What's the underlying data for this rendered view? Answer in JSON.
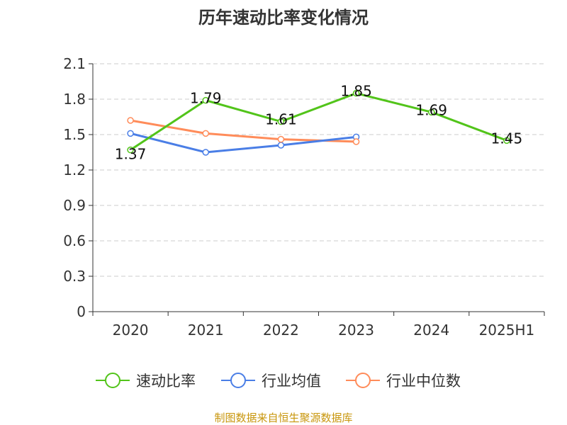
{
  "chart_data": {
    "type": "line",
    "title": "历年速动比率变化情况",
    "categories": [
      "2020",
      "2021",
      "2022",
      "2023",
      "2024",
      "2025H1"
    ],
    "ylim": [
      0,
      2.1
    ],
    "yticks": [
      "0",
      "0.3",
      "0.6",
      "0.9",
      "1.2",
      "1.5",
      "1.8",
      "2.1"
    ],
    "grid": true,
    "legend_position": "bottom",
    "series": [
      {
        "name": "速动比率",
        "color": "#52c41a",
        "values": [
          1.37,
          1.79,
          1.61,
          1.85,
          1.69,
          1.45
        ],
        "labels": [
          "1.37",
          "1.79",
          "1.61",
          "1.85",
          "1.69",
          "1.45"
        ]
      },
      {
        "name": "行业均值",
        "color": "#4a7ee6",
        "values": [
          1.51,
          1.35,
          1.41,
          1.48,
          null,
          null
        ]
      },
      {
        "name": "行业中位数",
        "color": "#ff8c5a",
        "values": [
          1.62,
          1.51,
          1.46,
          1.44,
          null,
          null
        ]
      }
    ]
  },
  "footer": {
    "source": "制图数据来自恒生聚源数据库",
    "color": "#c8960c"
  }
}
